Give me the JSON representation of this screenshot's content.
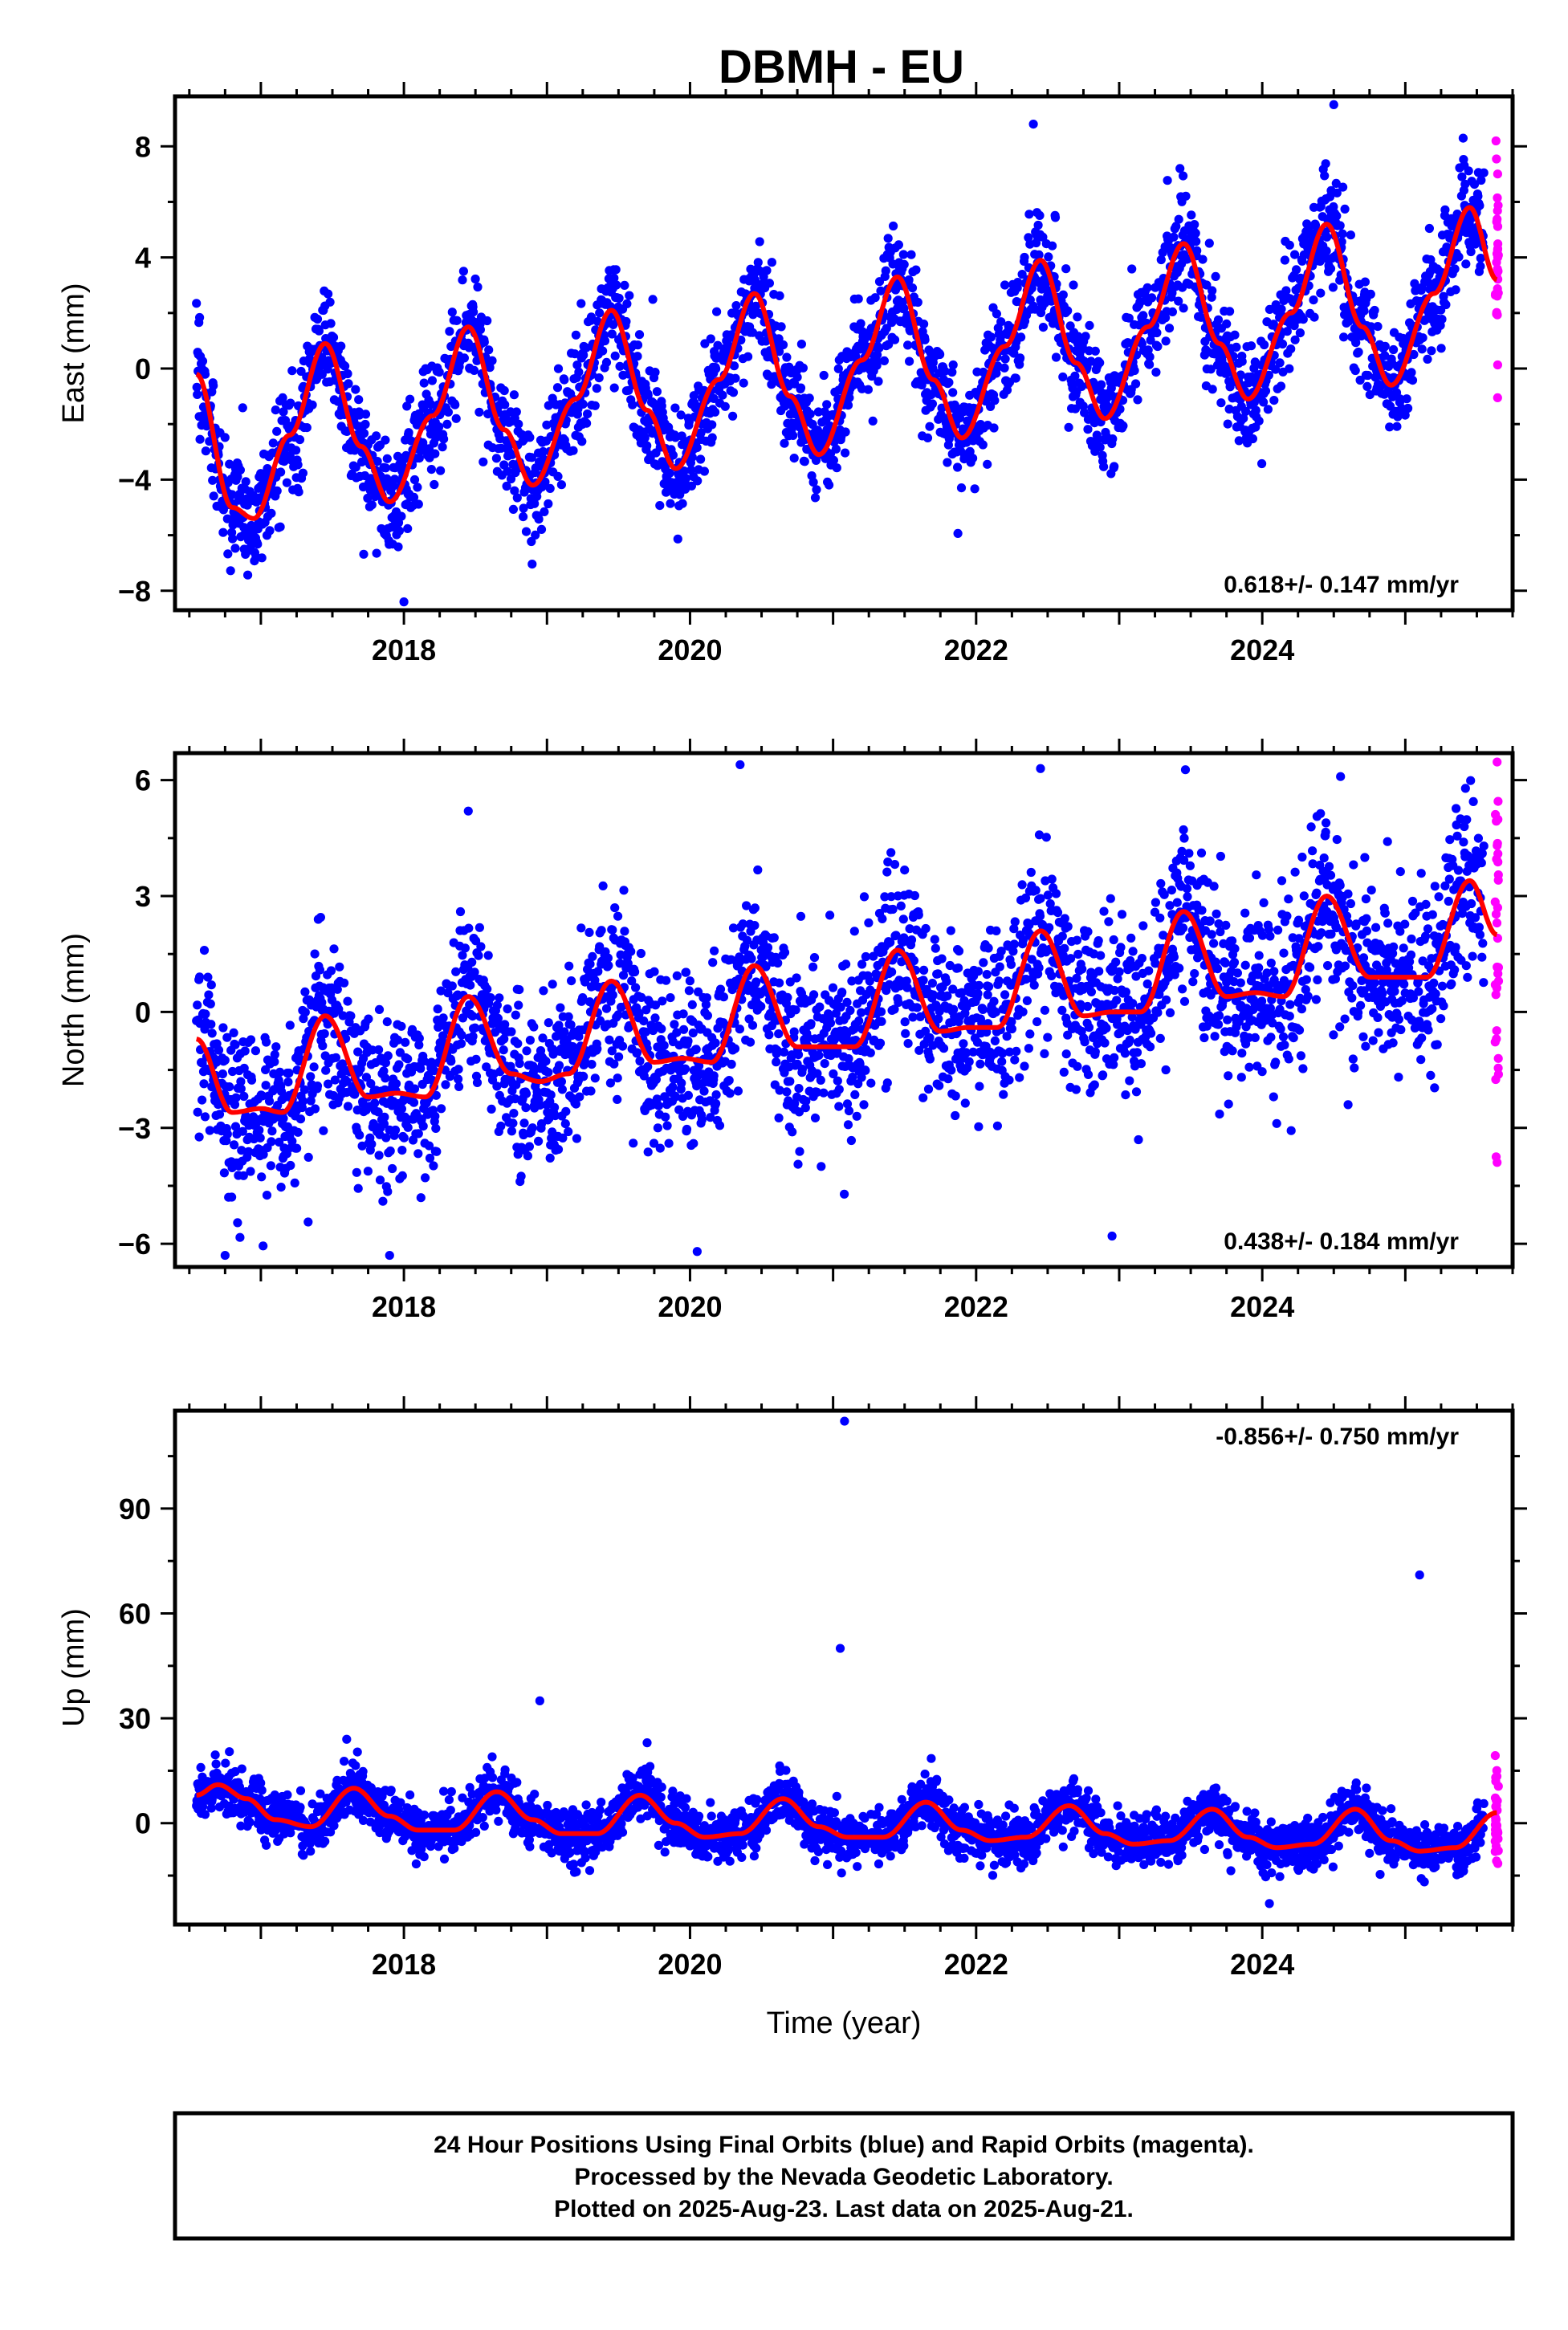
{
  "title": "DBMH - EU",
  "footer": {
    "lines": [
      "24 Hour Positions Using Final Orbits (blue) and Rapid Orbits (magenta).",
      "Processed by the Nevada Geodetic Laboratory.",
      "Plotted on 2025-Aug-23. Last data on 2025-Aug-21."
    ]
  },
  "colors": {
    "final_orbits": "#0000ff",
    "rapid_orbits": "#ff00ff",
    "model": "#ff0000",
    "frame": "#000000"
  },
  "chart_data": [
    {
      "type": "scatter",
      "ylabel": "East (mm)",
      "xlabel": "",
      "xlim": [
        2016.4,
        2025.75
      ],
      "ylim": [
        -8.7,
        9.8
      ],
      "xticks": [
        2018,
        2020,
        2022,
        2024
      ],
      "xtick_labels": [
        "2018",
        "2020",
        "2022",
        "2024"
      ],
      "yticks": [
        -8,
        -4,
        0,
        4,
        8
      ],
      "ytick_labels": [
        "−8",
        "−4",
        "0",
        "4",
        "8"
      ],
      "rate_label": "0.618+/- 0.147 mm/yr",
      "rate_position": "bottom-right",
      "data_start": 2016.55,
      "final_end": 2025.55,
      "rapid_end": 2025.64,
      "series": [
        {
          "name": "model",
          "x": [
            2016.55,
            2016.8,
            2016.95,
            2017.2,
            2017.45,
            2017.7,
            2017.9,
            2018.2,
            2018.45,
            2018.7,
            2018.9,
            2019.2,
            2019.45,
            2019.7,
            2019.9,
            2020.2,
            2020.45,
            2020.7,
            2020.9,
            2021.2,
            2021.45,
            2021.7,
            2021.9,
            2022.2,
            2022.45,
            2022.7,
            2022.9,
            2023.2,
            2023.45,
            2023.7,
            2023.9,
            2024.2,
            2024.45,
            2024.7,
            2024.9,
            2025.2,
            2025.45,
            2025.64
          ],
          "y": [
            -0.2,
            -5.0,
            -5.4,
            -2.4,
            0.9,
            -2.8,
            -4.8,
            -1.7,
            1.5,
            -2.2,
            -4.2,
            -1.1,
            2.1,
            -1.5,
            -3.6,
            -0.4,
            2.7,
            -1.0,
            -3.1,
            0.3,
            3.3,
            -0.4,
            -2.5,
            0.8,
            3.9,
            0.2,
            -1.8,
            1.5,
            4.5,
            0.9,
            -1.1,
            2.0,
            5.2,
            1.5,
            -0.6,
            2.7,
            5.8,
            3.2
          ]
        }
      ],
      "scatter_noise": 1.0,
      "outliers": [
        {
          "x": 2018.0,
          "y": -8.4
        },
        {
          "x": 2022.4,
          "y": 8.8
        },
        {
          "x": 2024.5,
          "y": 9.5
        }
      ]
    },
    {
      "type": "scatter",
      "ylabel": "North (mm)",
      "xlabel": "",
      "xlim": [
        2016.4,
        2025.75
      ],
      "ylim": [
        -6.6,
        6.7
      ],
      "xticks": [
        2018,
        2020,
        2022,
        2024
      ],
      "xtick_labels": [
        "2018",
        "2020",
        "2022",
        "2024"
      ],
      "yticks": [
        -6,
        -3,
        0,
        3,
        6
      ],
      "ytick_labels": [
        "−6",
        "−3",
        "0",
        "3",
        "6"
      ],
      "rate_label": "0.438+/- 0.184 mm/yr",
      "rate_position": "bottom-right",
      "data_start": 2016.55,
      "final_end": 2025.55,
      "rapid_end": 2025.64,
      "series": [
        {
          "name": "model",
          "x": [
            2016.55,
            2016.8,
            2017.0,
            2017.15,
            2017.45,
            2017.75,
            2017.95,
            2018.15,
            2018.45,
            2018.75,
            2018.95,
            2019.15,
            2019.45,
            2019.75,
            2019.95,
            2020.15,
            2020.45,
            2020.75,
            2020.95,
            2021.15,
            2021.45,
            2021.75,
            2021.95,
            2022.15,
            2022.45,
            2022.75,
            2022.95,
            2023.15,
            2023.45,
            2023.75,
            2023.95,
            2024.15,
            2024.45,
            2024.75,
            2024.95,
            2025.15,
            2025.45,
            2025.64
          ],
          "y": [
            -0.7,
            -2.6,
            -2.5,
            -2.6,
            -0.1,
            -2.2,
            -2.1,
            -2.2,
            0.4,
            -1.6,
            -1.8,
            -1.6,
            0.8,
            -1.3,
            -1.2,
            -1.3,
            1.2,
            -0.9,
            -0.9,
            -0.9,
            1.6,
            -0.5,
            -0.4,
            -0.4,
            2.1,
            -0.1,
            0.0,
            0.0,
            2.6,
            0.4,
            0.5,
            0.4,
            3.0,
            0.9,
            0.9,
            0.9,
            3.4,
            2.0
          ]
        }
      ],
      "scatter_noise": 1.1,
      "outliers": [
        {
          "x": 2016.75,
          "y": -6.3
        },
        {
          "x": 2017.9,
          "y": -6.3
        },
        {
          "x": 2018.45,
          "y": 5.2
        },
        {
          "x": 2020.05,
          "y": -6.2
        },
        {
          "x": 2020.35,
          "y": 6.4
        },
        {
          "x": 2022.45,
          "y": 6.3
        },
        {
          "x": 2022.95,
          "y": -5.8
        },
        {
          "x": 2024.6,
          "y": -2.4
        }
      ]
    },
    {
      "type": "scatter",
      "ylabel": "Up (mm)",
      "xlabel": "Time (year)",
      "xlim": [
        2016.4,
        2025.75
      ],
      "ylim": [
        -29,
        118
      ],
      "xticks": [
        2018,
        2020,
        2022,
        2024
      ],
      "xtick_labels": [
        "2018",
        "2020",
        "2022",
        "2024"
      ],
      "yticks": [
        0,
        30,
        60,
        90
      ],
      "ytick_labels": [
        "0",
        "30",
        "60",
        "90"
      ],
      "rate_label": "-0.856+/- 0.750 mm/yr",
      "rate_position": "top-right",
      "data_start": 2016.55,
      "final_end": 2025.55,
      "rapid_end": 2025.64,
      "series": [
        {
          "name": "model",
          "x": [
            2016.55,
            2016.7,
            2016.9,
            2017.1,
            2017.35,
            2017.65,
            2017.9,
            2018.1,
            2018.35,
            2018.65,
            2018.9,
            2019.1,
            2019.35,
            2019.65,
            2019.9,
            2020.1,
            2020.35,
            2020.65,
            2020.9,
            2021.1,
            2021.35,
            2021.65,
            2021.9,
            2022.1,
            2022.35,
            2022.65,
            2022.9,
            2023.1,
            2023.35,
            2023.65,
            2023.9,
            2024.1,
            2024.35,
            2024.65,
            2024.9,
            2025.1,
            2025.35,
            2025.64
          ],
          "y": [
            8,
            11,
            7,
            1,
            -1,
            10,
            2,
            -2,
            -2,
            9,
            1,
            -3,
            -3,
            8,
            0,
            -4,
            -3,
            7,
            -1,
            -4,
            -4,
            6,
            -2,
            -5,
            -4,
            5,
            -3,
            -6,
            -5,
            4,
            -4,
            -7,
            -6,
            4,
            -5,
            -8,
            -7,
            3
          ]
        }
      ],
      "scatter_noise": 3.6,
      "outliers": [
        {
          "x": 2018.95,
          "y": 35
        },
        {
          "x": 2021.05,
          "y": 50
        },
        {
          "x": 2021.08,
          "y": 115
        },
        {
          "x": 2025.1,
          "y": 71
        },
        {
          "x": 2017.6,
          "y": 24
        },
        {
          "x": 2019.7,
          "y": 23
        },
        {
          "x": 2024.05,
          "y": -23
        }
      ]
    }
  ]
}
